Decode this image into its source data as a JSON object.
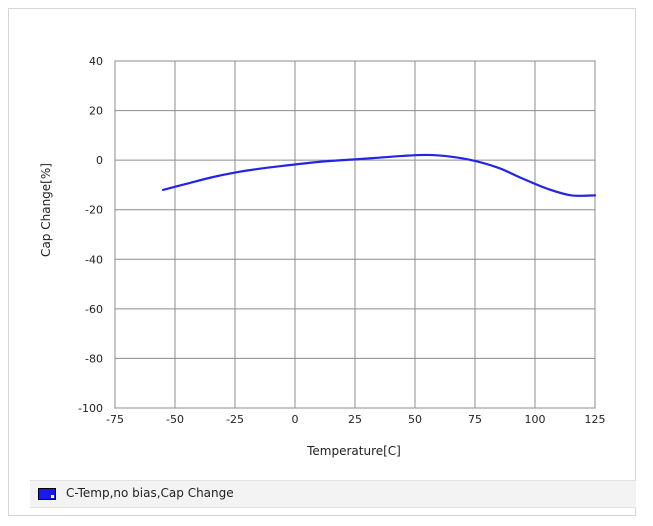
{
  "chart_data": {
    "type": "line",
    "xlabel": "Temperature[C]",
    "ylabel": "Cap Change[%]",
    "xlim": [
      -75,
      125
    ],
    "ylim": [
      -100,
      40
    ],
    "x_ticks": [
      "-75",
      "-50",
      "-25",
      "0",
      "25",
      "50",
      "75",
      "100",
      "125"
    ],
    "y_ticks": [
      "40",
      "20",
      "0",
      "-20",
      "-40",
      "-60",
      "-80",
      "-100"
    ],
    "x_tick_values": [
      -75,
      -50,
      -25,
      0,
      25,
      50,
      75,
      100,
      125
    ],
    "y_tick_values": [
      40,
      20,
      0,
      -20,
      -40,
      -60,
      -80,
      -100
    ],
    "grid": true,
    "legend_position": "bottom",
    "series": [
      {
        "name": "C-Temp,no bias,Cap Change",
        "color": "#2424e8",
        "x": [
          -55,
          -45,
          -35,
          -25,
          -15,
          -5,
          5,
          15,
          25,
          35,
          45,
          55,
          65,
          75,
          85,
          95,
          105,
          115,
          125
        ],
        "y": [
          -12,
          -9.5,
          -7,
          -5,
          -3.5,
          -2.3,
          -1.2,
          -0.3,
          0.3,
          1.0,
          1.7,
          2.1,
          1.4,
          -0.3,
          -3.2,
          -7.5,
          -11.5,
          -14.2,
          -14.2
        ]
      }
    ]
  }
}
